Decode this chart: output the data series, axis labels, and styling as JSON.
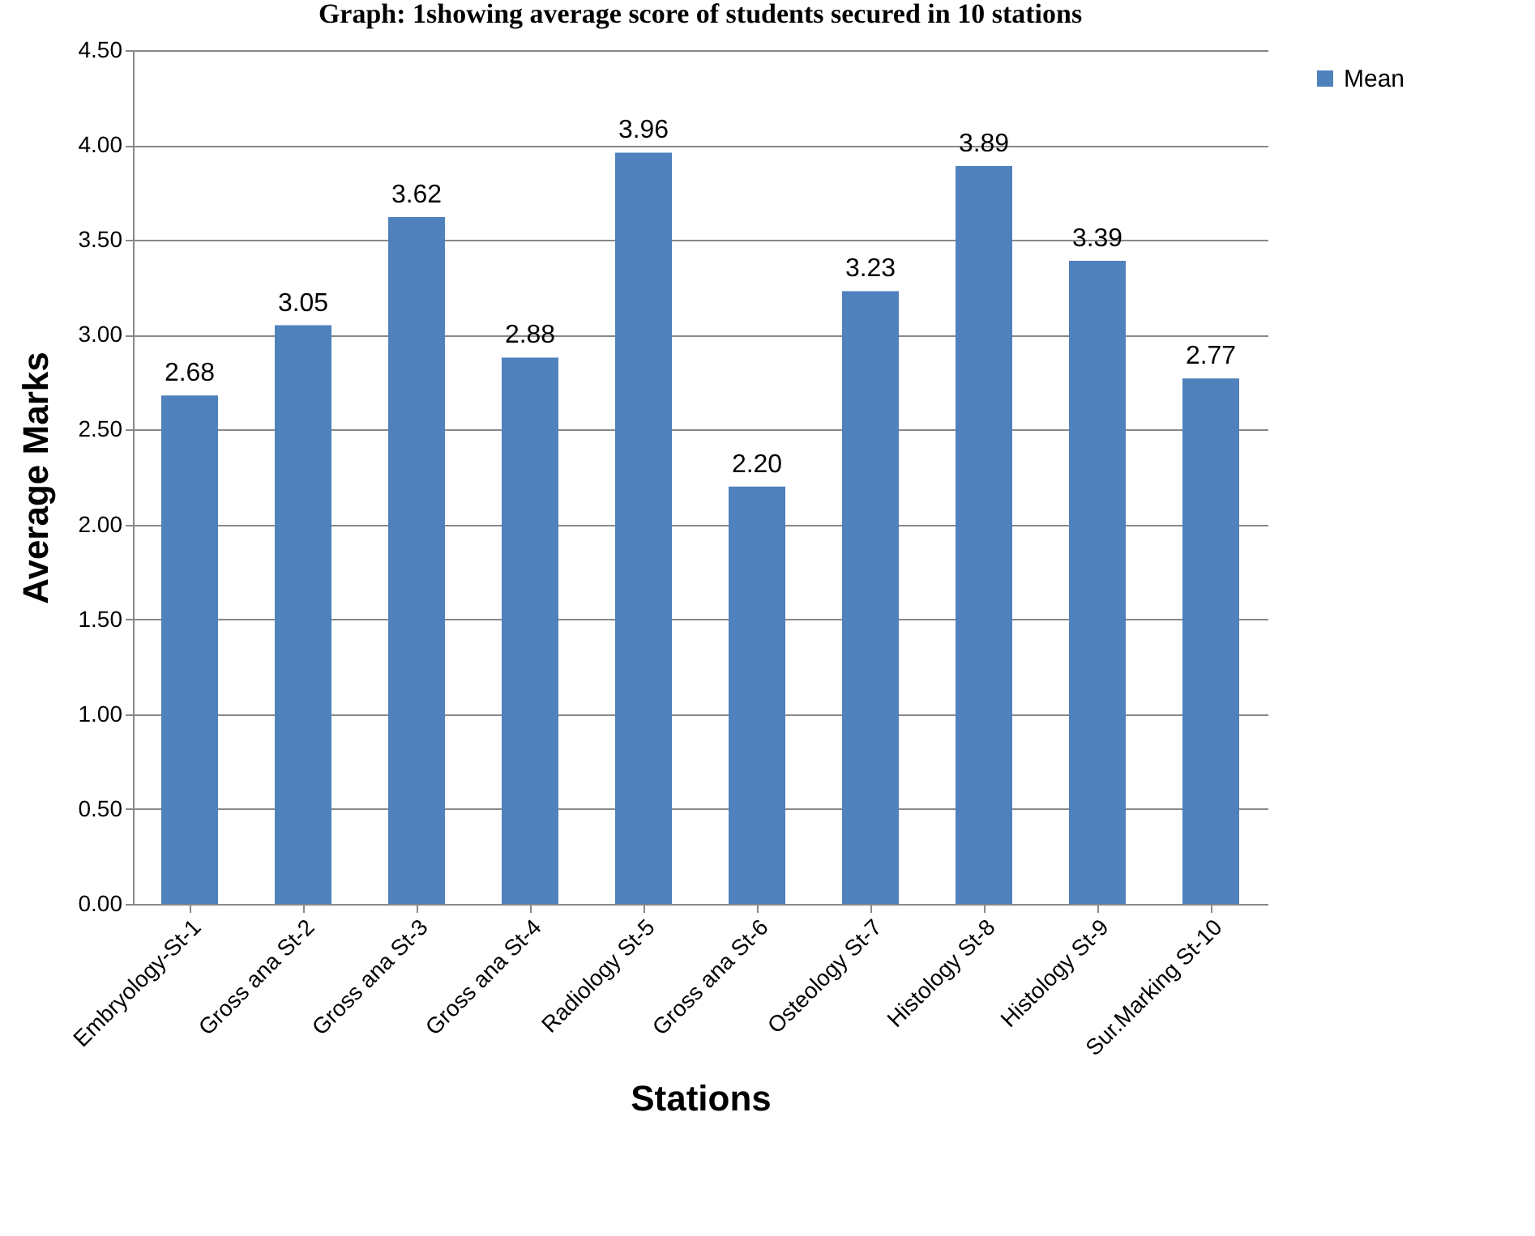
{
  "chart_data": {
    "type": "bar",
    "title": "Graph: 1showing average score of students secured in 10 stations",
    "xlabel": "Stations",
    "ylabel": "Average Marks",
    "categories": [
      "Embryology-St-1",
      "Gross ana St-2",
      "Gross ana St-3",
      "Gross ana St-4",
      "Radiology St-5",
      "Gross ana St-6",
      "Osteology St-7",
      "Histology St-8",
      "Histology St-9",
      "Sur.Marking St-10"
    ],
    "series": [
      {
        "name": "Mean",
        "color": "#4f81bd",
        "values": [
          2.68,
          3.05,
          3.62,
          2.88,
          3.96,
          2.2,
          3.23,
          3.89,
          3.39,
          2.77
        ],
        "value_labels": [
          "2.68",
          "3.05",
          "3.62",
          "2.88",
          "3.96",
          "2.20",
          "3.23",
          "3.89",
          "3.39",
          "2.77"
        ]
      }
    ],
    "ylim": [
      0,
      4.5
    ],
    "yticks": [
      {
        "value": 0,
        "label": "0.00"
      },
      {
        "value": 0.5,
        "label": "0.50"
      },
      {
        "value": 1,
        "label": "1.00"
      },
      {
        "value": 1.5,
        "label": "1.50"
      },
      {
        "value": 2,
        "label": "2.00"
      },
      {
        "value": 2.5,
        "label": "2.50"
      },
      {
        "value": 3,
        "label": "3.00"
      },
      {
        "value": 3.5,
        "label": "3.50"
      },
      {
        "value": 4,
        "label": "4.00"
      },
      {
        "value": 4.5,
        "label": "4.50"
      }
    ],
    "grid": "y",
    "legend": "right"
  }
}
